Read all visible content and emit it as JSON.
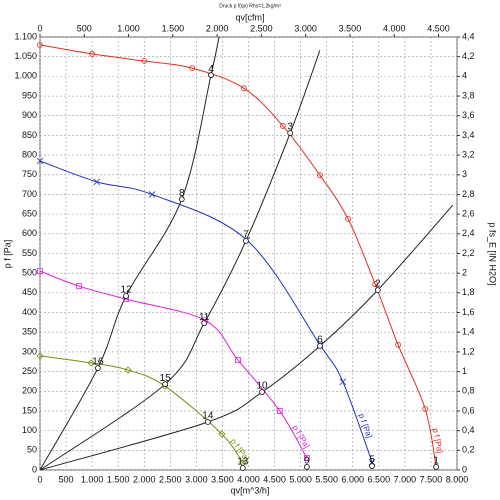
{
  "chart_data": {
    "type": "line",
    "title": "Druck p f(qv) Rho=1,2kg/m³",
    "xlabel": "qv[m^3/h]",
    "x2label": "qv[cfm]",
    "ylabel": "p f [Pa]",
    "y2label": "p fs_E [IN H2O]",
    "xlim": [
      0,
      8000
    ],
    "ylim": [
      0,
      1100
    ],
    "x2lim": [
      0,
      4709
    ],
    "y2lim": [
      0,
      4.4
    ],
    "grid": true,
    "xticks": [
      0,
      500,
      {
        "value": 1000,
        "label": "1.000"
      },
      {
        "value": 1500,
        "label": "1.500"
      },
      {
        "value": 2000,
        "label": "2.000"
      },
      {
        "value": 2500,
        "label": "2.500"
      },
      {
        "value": 3000,
        "label": "3.000"
      },
      {
        "value": 3500,
        "label": "3.500"
      },
      {
        "value": 4000,
        "label": "4.000"
      },
      {
        "value": 4500,
        "label": "4.500"
      },
      {
        "value": 5000,
        "label": "5.000"
      },
      {
        "value": 5500,
        "label": "5.500"
      },
      {
        "value": 6000,
        "label": "6.000"
      },
      {
        "value": 6500,
        "label": "6.500"
      },
      {
        "value": 7000,
        "label": "7.000"
      },
      {
        "value": 7500,
        "label": "7.500"
      },
      {
        "value": 8000,
        "label": "8.000"
      }
    ],
    "x2ticks": [
      0,
      500,
      {
        "value": 1000,
        "label": "1.000"
      },
      {
        "value": 1500,
        "label": "1.500"
      },
      {
        "value": 2000,
        "label": "2.000"
      },
      {
        "value": 2500,
        "label": "2.500"
      },
      {
        "value": 3000,
        "label": "3.000"
      },
      {
        "value": 3500,
        "label": "3.500"
      },
      {
        "value": 4000,
        "label": "4.000"
      },
      {
        "value": 4500,
        "label": "4.500"
      }
    ],
    "yticks": [
      0,
      50,
      100,
      150,
      200,
      250,
      300,
      350,
      400,
      450,
      500,
      550,
      600,
      650,
      700,
      750,
      800,
      850,
      900,
      950,
      {
        "value": 1000,
        "label": "1.000"
      },
      {
        "value": 1050,
        "label": "1.050"
      },
      {
        "value": 1100,
        "label": "1.100"
      }
    ],
    "y2ticks": [
      0,
      {
        "value": 0.2,
        "label": "0,2"
      },
      {
        "value": 0.4,
        "label": "0,4"
      },
      {
        "value": 0.6,
        "label": "0,6"
      },
      {
        "value": 0.8,
        "label": "0,8"
      },
      1,
      {
        "value": 1.2,
        "label": "1,2"
      },
      {
        "value": 1.4,
        "label": "1,4"
      },
      {
        "value": 1.6,
        "label": "1,6"
      },
      {
        "value": 1.8,
        "label": "1,8"
      },
      2,
      {
        "value": 2.2,
        "label": "2,2"
      },
      {
        "value": 2.4,
        "label": "2,4"
      },
      {
        "value": 2.6,
        "label": "2,6"
      },
      {
        "value": 2.8,
        "label": "2,8"
      },
      3,
      {
        "value": 3.2,
        "label": "3,2"
      },
      {
        "value": 3.4,
        "label": "3,4"
      },
      {
        "value": 3.6,
        "label": "3,6"
      },
      {
        "value": 3.8,
        "label": "3,8"
      },
      4,
      {
        "value": 4.2,
        "label": "4,2"
      },
      {
        "value": 4.4,
        "label": "4,4"
      }
    ],
    "series": [
      {
        "name": "p f [Pa]",
        "color": "#e03020",
        "marker": "circle",
        "x": [
          0,
          1000,
          2000,
          2920,
          3910,
          4660,
          5370,
          5910,
          6430,
          6870,
          7390,
          7600
        ],
        "values": [
          1080,
          1057,
          1039,
          1021,
          970,
          874,
          749,
          638,
          472,
          318,
          155,
          8
        ]
      },
      {
        "name": "p f [Pa]",
        "color": "#2030c0",
        "marker": "x",
        "x": [
          0,
          1090,
          2150,
          3970,
          5370,
          5810,
          6370
        ],
        "values": [
          785,
          732,
          700,
          584,
          318,
          224,
          20
        ]
      },
      {
        "name": "p f [Pa]",
        "color": "#e020e0",
        "marker": "square",
        "x": [
          0,
          750,
          1650,
          3170,
          3800,
          4600,
          5120
        ],
        "values": [
          505,
          467,
          434,
          380,
          279,
          150,
          30
        ]
      },
      {
        "name": "p f [Pa]",
        "color": "#7a8a10",
        "marker": "diamond",
        "x": [
          0,
          980,
          1690,
          2400,
          3490,
          3890
        ],
        "values": [
          290,
          272,
          254,
          213,
          91,
          18
        ]
      }
    ],
    "system_curves": [
      {
        "color": "#222222",
        "x": [
          0,
          1110,
          1650,
          2720,
          3280,
          3435
        ],
        "values": [
          0,
          259,
          442,
          688,
          1003,
          1100
        ]
      },
      {
        "color": "#222222",
        "x": [
          0,
          2400,
          3150,
          3950,
          4800,
          5370
        ],
        "values": [
          0,
          218,
          373,
          582,
          856,
          1066
        ]
      },
      {
        "color": "#222222",
        "x": [
          0,
          3220,
          4260,
          5370,
          6480,
          7920
        ],
        "values": [
          0,
          122,
          198,
          315,
          457,
          673
        ]
      }
    ],
    "points": [
      {
        "label": "1",
        "x": 7600,
        "y": 8
      },
      {
        "label": "2",
        "x": 6480,
        "y": 457
      },
      {
        "label": "3",
        "x": 4800,
        "y": 856
      },
      {
        "label": "4",
        "x": 3280,
        "y": 1003
      },
      {
        "label": "5",
        "x": 6370,
        "y": 10
      },
      {
        "label": "6",
        "x": 5370,
        "y": 315
      },
      {
        "label": "7",
        "x": 3950,
        "y": 582
      },
      {
        "label": "8",
        "x": 2720,
        "y": 688
      },
      {
        "label": "9",
        "x": 5120,
        "y": 8
      },
      {
        "label": "10",
        "x": 4260,
        "y": 198
      },
      {
        "label": "11",
        "x": 3150,
        "y": 373
      },
      {
        "label": "12",
        "x": 1650,
        "y": 442
      },
      {
        "label": "13",
        "x": 3890,
        "y": 5
      },
      {
        "label": "14",
        "x": 3220,
        "y": 122
      },
      {
        "label": "15",
        "x": 2400,
        "y": 218
      },
      {
        "label": "16",
        "x": 1110,
        "y": 259
      }
    ]
  }
}
